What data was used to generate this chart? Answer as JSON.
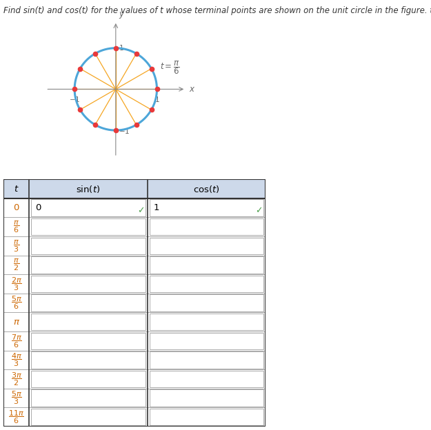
{
  "title": "Find sin(t) and cos(t) for the values of t whose terminal points are shown on the unit circle in the figure. t increases in increme",
  "title_color": "#333333",
  "title_fontsize": 8.5,
  "circle_color": "#4da6d9",
  "spoke_color": "#f5a623",
  "dot_color": "#e8393a",
  "axis_color": "#888888",
  "annotation_color": "#666666",
  "table_header_bg": "#cdd9ea",
  "table_border_color": "#333333",
  "table_inner_border": "#aaaaaa",
  "input_box_border": "#aaaaaa",
  "t_col_color": "#cc6600",
  "checkmark_color": "#4a9e4a",
  "sin_values": [
    "0",
    "",
    "",
    "",
    "",
    "",
    "",
    "",
    "",
    "",
    "",
    ""
  ],
  "cos_values": [
    "1",
    "",
    "",
    "",
    "",
    "",
    "",
    "",
    "",
    "",
    "",
    ""
  ],
  "sin_filled": [
    true,
    false,
    false,
    false,
    false,
    false,
    false,
    false,
    false,
    false,
    false,
    false
  ],
  "cos_filled": [
    true,
    false,
    false,
    false,
    false,
    false,
    false,
    false,
    false,
    false,
    false,
    false
  ],
  "spoke_angles_deg": [
    90,
    60,
    30,
    0,
    330,
    300,
    270,
    240,
    210,
    180,
    150,
    120
  ],
  "figure_bg": "#ffffff"
}
